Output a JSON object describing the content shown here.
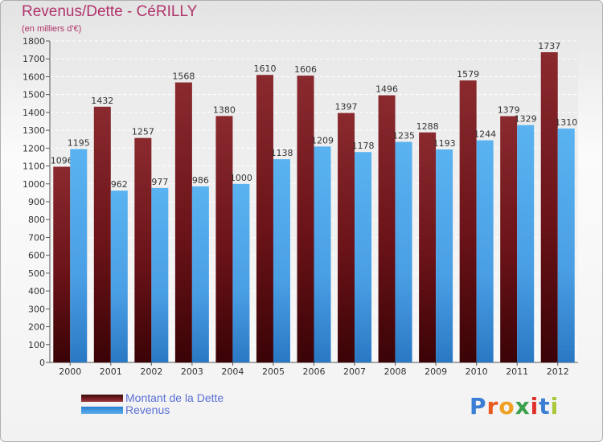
{
  "chart_data": {
    "type": "bar",
    "title": "Revenus/Dette - CéRILLY",
    "subtitle": "(en milliers d'€)",
    "xlabel": "",
    "ylabel": "",
    "ylim": [
      0,
      1800
    ],
    "yticks": [
      0,
      100,
      200,
      300,
      400,
      500,
      600,
      700,
      800,
      900,
      1000,
      1100,
      1200,
      1300,
      1400,
      1500,
      1600,
      1700,
      1800
    ],
    "grid": true,
    "categories": [
      "2000",
      "2001",
      "2002",
      "2003",
      "2004",
      "2005",
      "2006",
      "2007",
      "2008",
      "2009",
      "2010",
      "2011",
      "2012"
    ],
    "series": [
      {
        "name": "Montant de la Dette",
        "color": "#7a1f24",
        "values": [
          1096,
          1432,
          1257,
          1568,
          1380,
          1610,
          1606,
          1397,
          1496,
          1288,
          1579,
          1379,
          1737
        ]
      },
      {
        "name": "Revenus",
        "color": "#4aa3e6",
        "values": [
          1195,
          962,
          977,
          986,
          1000,
          1138,
          1209,
          1178,
          1235,
          1193,
          1244,
          1329,
          1310
        ]
      }
    ],
    "legend_position": "bottom-left"
  },
  "logo": {
    "letters": [
      "P",
      "r",
      "o",
      "x",
      "i",
      "t",
      "i"
    ],
    "colors": [
      "#3a7fd5",
      "#e85a1e",
      "#f0a020",
      "#3aa04a",
      "#e0302a",
      "#3a7fd5",
      "#a8c83a"
    ]
  }
}
